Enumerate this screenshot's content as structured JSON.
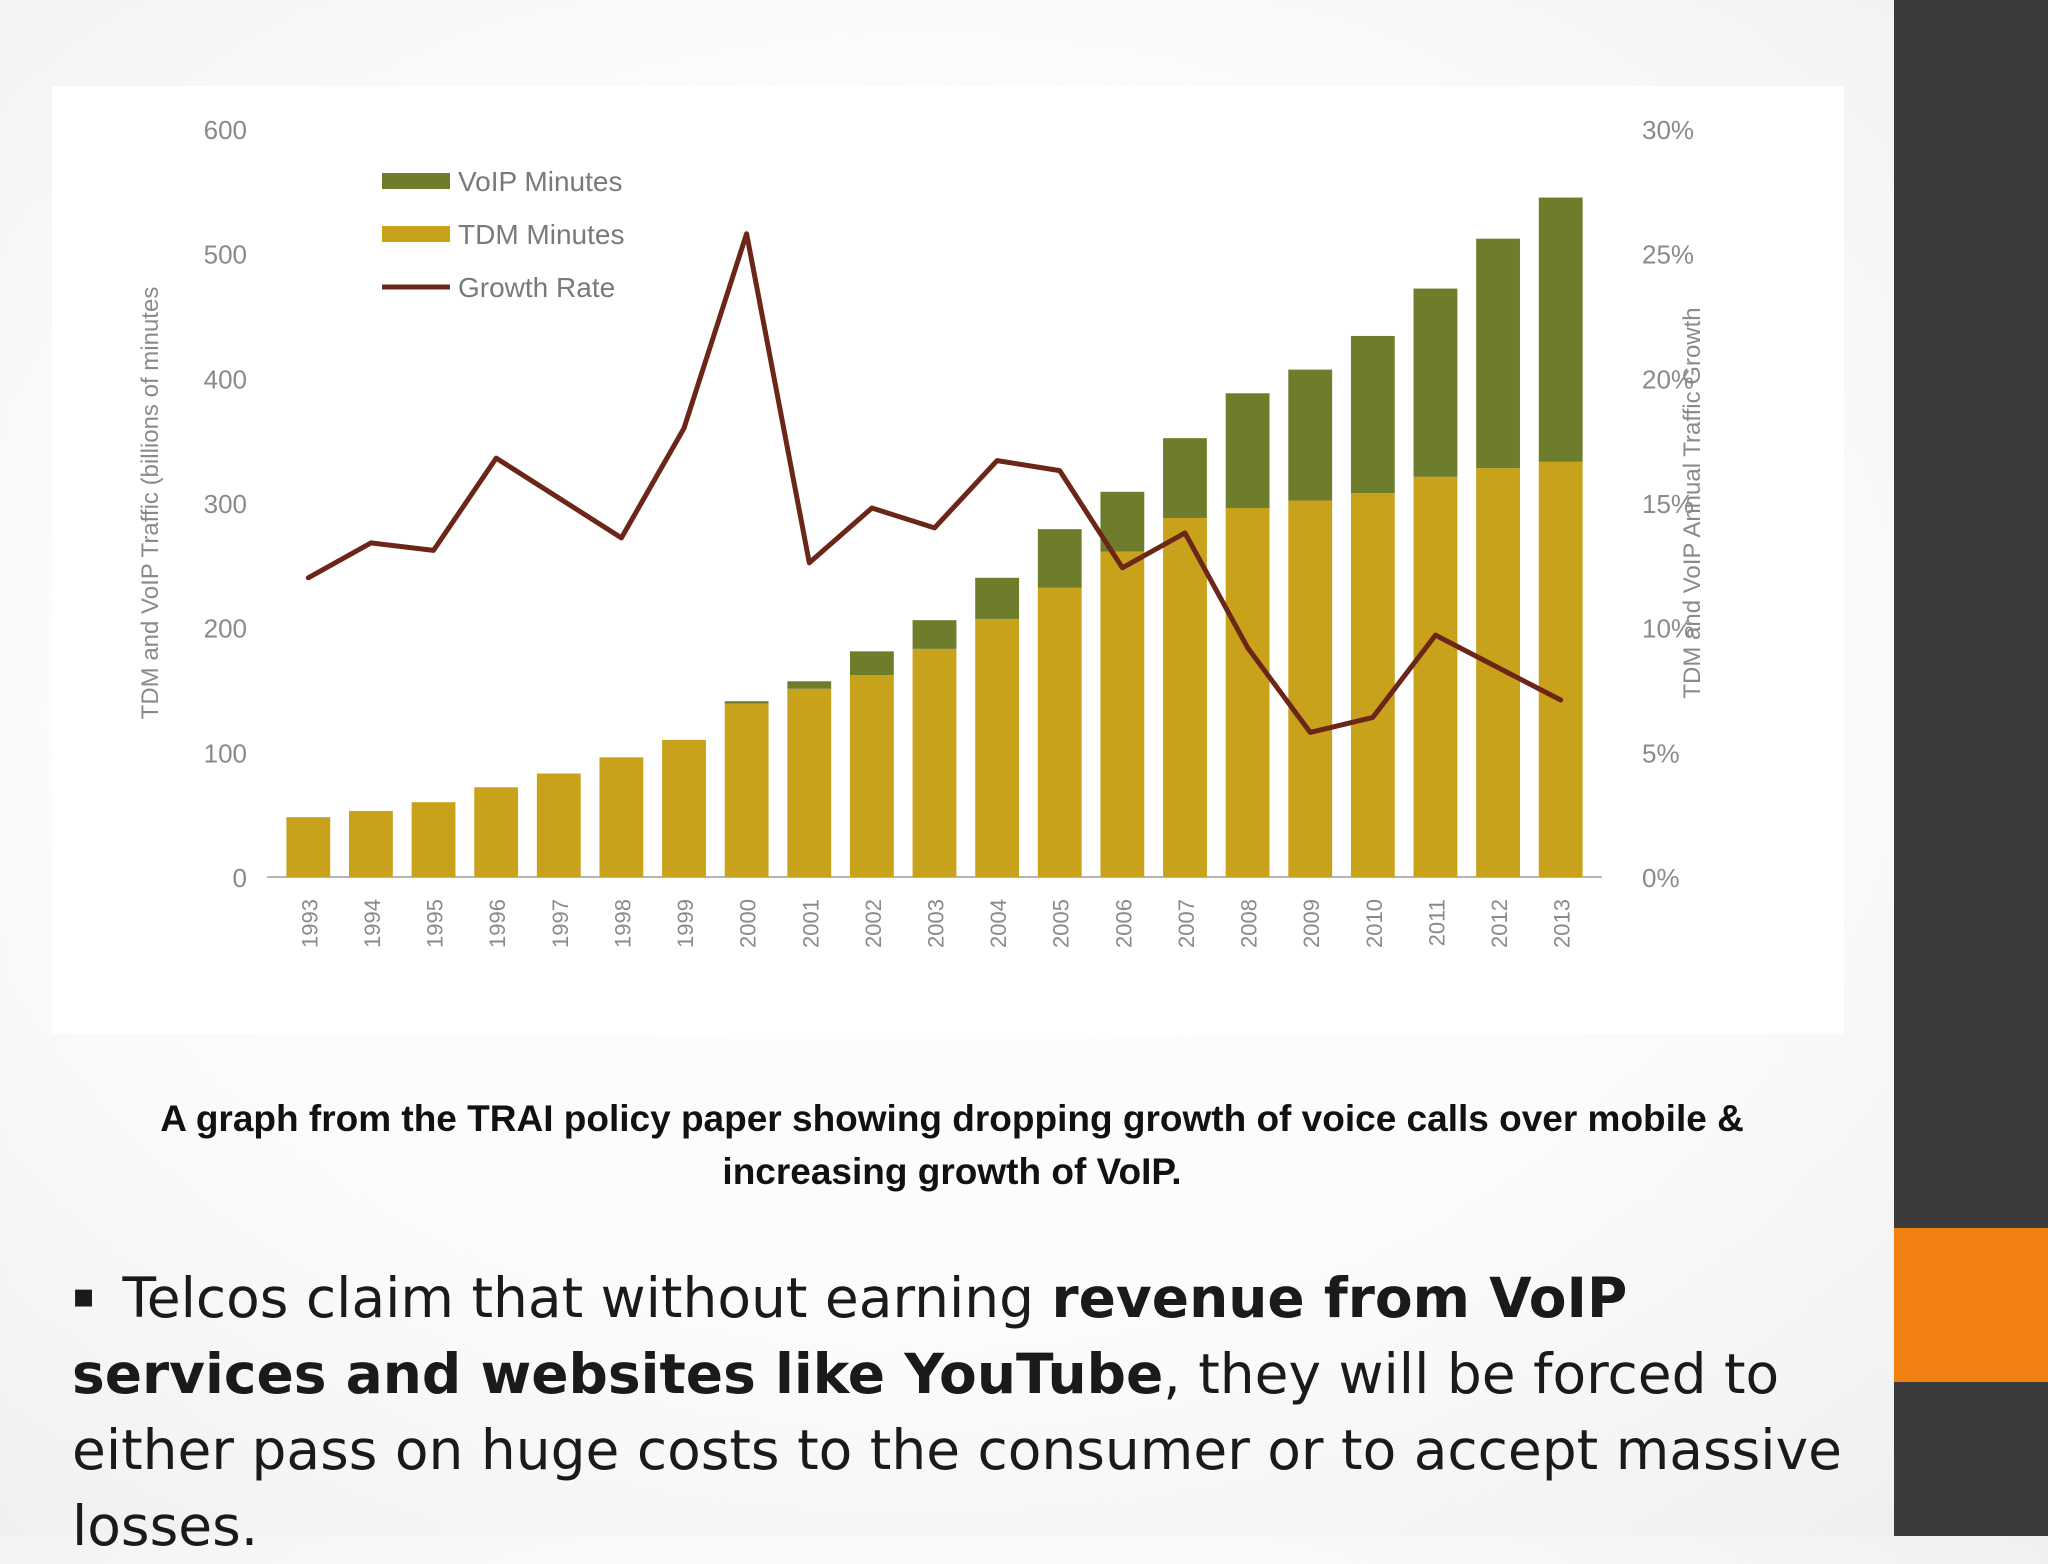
{
  "slide": {
    "caption": "A graph from the TRAI policy paper showing dropping growth of voice calls over mobile & increasing growth of VoIP.",
    "body": {
      "bullet": "▪",
      "part1": " Telcos claim that without earning ",
      "bold1": "revenue from VoIP services and websites like YouTube",
      "part2": ", they will be forced to either pass on huge costs to the consumer or to accept massive losses."
    },
    "colors": {
      "sidebar": "#3b3b3b",
      "accent": "#f0800f"
    }
  },
  "chart_data": {
    "type": "bar",
    "stacked": true,
    "title": "",
    "categories": [
      "1993",
      "1994",
      "1995",
      "1996",
      "1997",
      "1998",
      "1999",
      "2000",
      "2001",
      "2002",
      "2003",
      "2004",
      "2005",
      "2006",
      "2007",
      "2008",
      "2009",
      "2010",
      "2011",
      "2012",
      "2013"
    ],
    "series": [
      {
        "name": "TDM Minutes",
        "color": "#c9a21c",
        "values": [
          48,
          53,
          60,
          72,
          83,
          96,
          110,
          139,
          151,
          162,
          183,
          207,
          232,
          261,
          288,
          296,
          302,
          308,
          321,
          328,
          333
        ]
      },
      {
        "name": "VoIP Minutes",
        "color": "#6d7d2c",
        "values": [
          0,
          0,
          0,
          0,
          0,
          0,
          0,
          2,
          6,
          19,
          23,
          33,
          47,
          48,
          64,
          92,
          105,
          126,
          151,
          184,
          212
        ]
      }
    ],
    "line_series": {
      "name": "Growth Rate",
      "color": "#6b2618",
      "axis": "right",
      "values": [
        12.0,
        13.4,
        13.1,
        16.8,
        15.2,
        13.6,
        18.0,
        25.8,
        12.6,
        14.8,
        14.0,
        16.7,
        16.3,
        12.4,
        13.8,
        9.2,
        5.8,
        6.4,
        9.7,
        8.4,
        7.1
      ]
    },
    "ylabel": "TDM and VoIP Traffic (billions of minutes",
    "y2label": "TDM and VoIP Annual Traffic Growth",
    "ylim": [
      0,
      600
    ],
    "y2lim": [
      0,
      30
    ],
    "yticks": [
      "0",
      "100",
      "200",
      "300",
      "400",
      "500",
      "600"
    ],
    "y2ticks": [
      "0%",
      "5%",
      "10%",
      "15%",
      "20%",
      "25%",
      "30%"
    ],
    "legend": {
      "position": "top-left",
      "entries": [
        "VoIP Minutes",
        "TDM Minutes",
        "Growth Rate"
      ]
    },
    "grid": false
  }
}
